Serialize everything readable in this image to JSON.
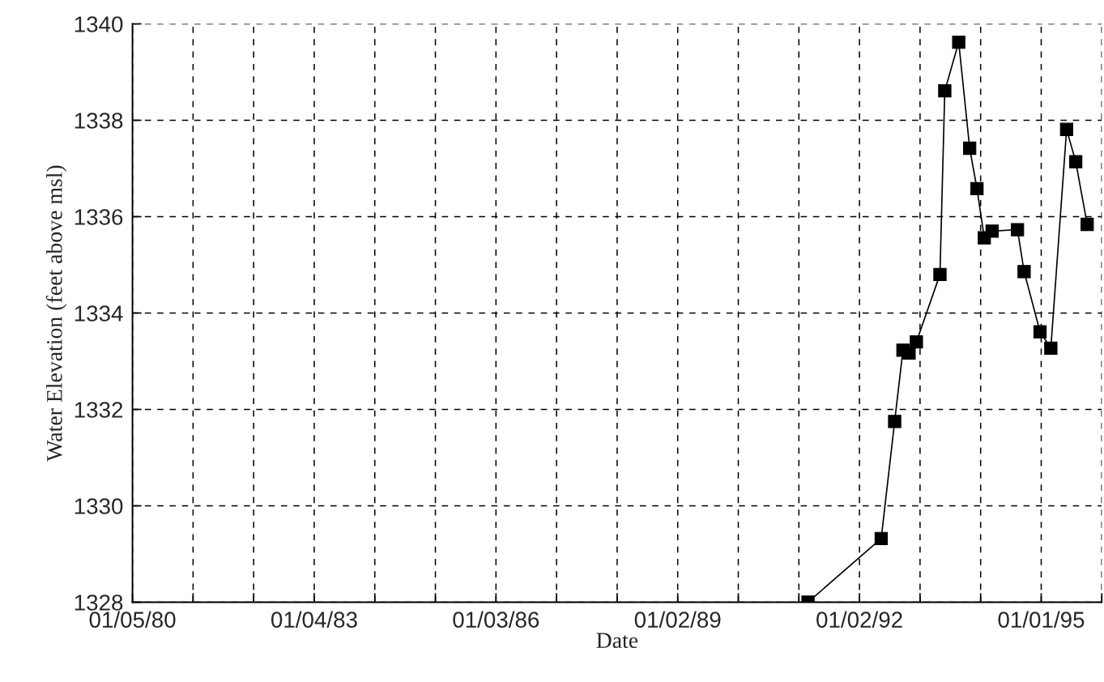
{
  "chart_data": {
    "type": "line",
    "xlabel": "Date",
    "ylabel": "Water Elevation (feet above msl)",
    "x": [
      "1991-02-26",
      "1992-05-12",
      "1992-08-01",
      "1992-09-20",
      "1992-10-27",
      "1992-12-10",
      "1993-05-01",
      "1993-05-30",
      "1993-08-22",
      "1993-10-27",
      "1993-12-10",
      "1994-01-23",
      "1994-03-11",
      "1994-08-11",
      "1994-09-20",
      "1994-12-25",
      "1995-02-28",
      "1995-06-03",
      "1995-07-28",
      "1995-10-05"
    ],
    "series": [
      {
        "color": "#000000",
        "values": [
          1328.0,
          1329.32,
          1331.75,
          1333.23,
          1333.17,
          1333.4,
          1334.8,
          1338.61,
          1339.62,
          1337.42,
          1336.58,
          1335.56,
          1335.7,
          1335.73,
          1334.86,
          1333.61,
          1333.27,
          1337.81,
          1337.14,
          1335.84
        ]
      }
    ],
    "xlim": [
      "1980-01-05",
      "1996-01-01"
    ],
    "xticks": [
      {
        "value": "1980-01-05",
        "label": "01/05/80"
      },
      {
        "value": "1981-01-04",
        "label": null
      },
      {
        "value": "1982-01-04",
        "label": null
      },
      {
        "value": "1983-01-04",
        "label": "01/04/83"
      },
      {
        "value": "1984-01-04",
        "label": null
      },
      {
        "value": "1985-01-03",
        "label": null
      },
      {
        "value": "1986-01-03",
        "label": "01/03/86"
      },
      {
        "value": "1987-01-03",
        "label": null
      },
      {
        "value": "1988-01-03",
        "label": null
      },
      {
        "value": "1989-01-02",
        "label": "01/02/89"
      },
      {
        "value": "1990-01-02",
        "label": null
      },
      {
        "value": "1991-01-02",
        "label": null
      },
      {
        "value": "1992-01-02",
        "label": "01/02/92"
      },
      {
        "value": "1993-01-01",
        "label": null
      },
      {
        "value": "1994-01-01",
        "label": null
      },
      {
        "value": "1995-01-01",
        "label": "01/01/95"
      },
      {
        "value": "1996-01-01",
        "label": null
      }
    ],
    "ylim": [
      1328,
      1340
    ],
    "yticks": [
      1328,
      1330,
      1332,
      1334,
      1336,
      1338,
      1340
    ],
    "grid": true,
    "marker": "square",
    "line_style": "solid",
    "legend": false
  }
}
